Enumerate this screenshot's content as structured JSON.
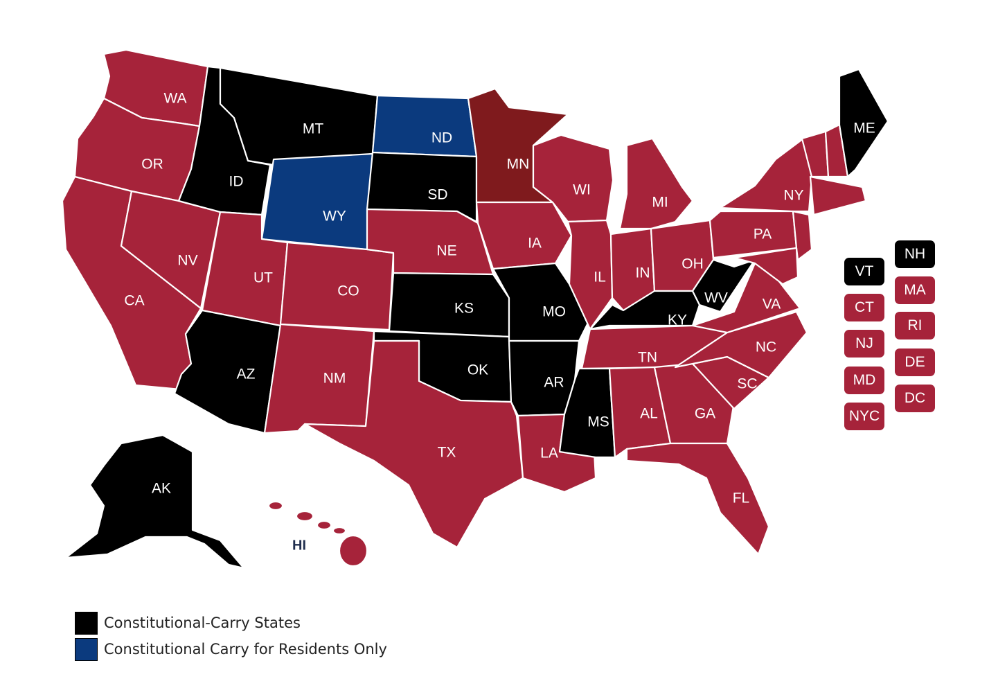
{
  "colors": {
    "constitutional_carry": "#000000",
    "residents_only": "#0b3a7e",
    "other": "#a6233a",
    "minnesota": "#7f1a1d",
    "hawaii_label": "#1f2d4d"
  },
  "states": [
    {
      "code": "WA",
      "label": "WA",
      "category": "other"
    },
    {
      "code": "OR",
      "label": "OR",
      "category": "other"
    },
    {
      "code": "CA",
      "label": "CA",
      "category": "other"
    },
    {
      "code": "NV",
      "label": "NV",
      "category": "other"
    },
    {
      "code": "ID",
      "label": "ID",
      "category": "constitutional_carry"
    },
    {
      "code": "MT",
      "label": "MT",
      "category": "constitutional_carry"
    },
    {
      "code": "WY",
      "label": "WY",
      "category": "residents_only"
    },
    {
      "code": "UT",
      "label": "UT",
      "category": "other"
    },
    {
      "code": "AZ",
      "label": "AZ",
      "category": "constitutional_carry"
    },
    {
      "code": "CO",
      "label": "CO",
      "category": "other"
    },
    {
      "code": "NM",
      "label": "NM",
      "category": "other"
    },
    {
      "code": "ND",
      "label": "ND",
      "category": "residents_only"
    },
    {
      "code": "SD",
      "label": "SD",
      "category": "constitutional_carry"
    },
    {
      "code": "NE",
      "label": "NE",
      "category": "other"
    },
    {
      "code": "KS",
      "label": "KS",
      "category": "constitutional_carry"
    },
    {
      "code": "OK",
      "label": "OK",
      "category": "constitutional_carry"
    },
    {
      "code": "TX",
      "label": "TX",
      "category": "other"
    },
    {
      "code": "MN",
      "label": "MN",
      "category": "minnesota"
    },
    {
      "code": "IA",
      "label": "IA",
      "category": "other"
    },
    {
      "code": "MO",
      "label": "MO",
      "category": "constitutional_carry"
    },
    {
      "code": "AR",
      "label": "AR",
      "category": "constitutional_carry"
    },
    {
      "code": "LA",
      "label": "LA",
      "category": "other"
    },
    {
      "code": "WI",
      "label": "WI",
      "category": "other"
    },
    {
      "code": "IL",
      "label": "IL",
      "category": "other"
    },
    {
      "code": "MS",
      "label": "MS",
      "category": "constitutional_carry"
    },
    {
      "code": "MI",
      "label": "MI",
      "category": "other"
    },
    {
      "code": "IN",
      "label": "IN",
      "category": "other"
    },
    {
      "code": "OH",
      "label": "OH",
      "category": "other"
    },
    {
      "code": "KY",
      "label": "KY",
      "category": "constitutional_carry"
    },
    {
      "code": "TN",
      "label": "TN",
      "category": "other"
    },
    {
      "code": "AL",
      "label": "AL",
      "category": "other"
    },
    {
      "code": "GA",
      "label": "GA",
      "category": "other"
    },
    {
      "code": "FL",
      "label": "FL",
      "category": "other"
    },
    {
      "code": "SC",
      "label": "SC",
      "category": "other"
    },
    {
      "code": "NC",
      "label": "NC",
      "category": "other"
    },
    {
      "code": "VA",
      "label": "VA",
      "category": "other"
    },
    {
      "code": "WV",
      "label": "WV",
      "category": "constitutional_carry"
    },
    {
      "code": "PA",
      "label": "PA",
      "category": "other"
    },
    {
      "code": "NY",
      "label": "NY",
      "category": "other"
    },
    {
      "code": "ME",
      "label": "ME",
      "category": "constitutional_carry"
    },
    {
      "code": "AK",
      "label": "AK",
      "category": "constitutional_carry"
    },
    {
      "code": "HI",
      "label": "HI",
      "category": "other"
    }
  ],
  "small_states": {
    "left_column": [
      {
        "label": "VT",
        "category": "constitutional_carry"
      },
      {
        "label": "CT",
        "category": "other"
      },
      {
        "label": "NJ",
        "category": "other"
      },
      {
        "label": "MD",
        "category": "other"
      },
      {
        "label": "NYC",
        "category": "other"
      }
    ],
    "right_column": [
      {
        "label": "NH",
        "category": "constitutional_carry"
      },
      {
        "label": "MA",
        "category": "other"
      },
      {
        "label": "RI",
        "category": "other"
      },
      {
        "label": "DE",
        "category": "other"
      },
      {
        "label": "DC",
        "category": "other"
      }
    ]
  },
  "legend": [
    {
      "label": "Constitutional-Carry States",
      "category": "constitutional_carry"
    },
    {
      "label": "Constitutional Carry for Residents Only",
      "category": "residents_only"
    }
  ]
}
